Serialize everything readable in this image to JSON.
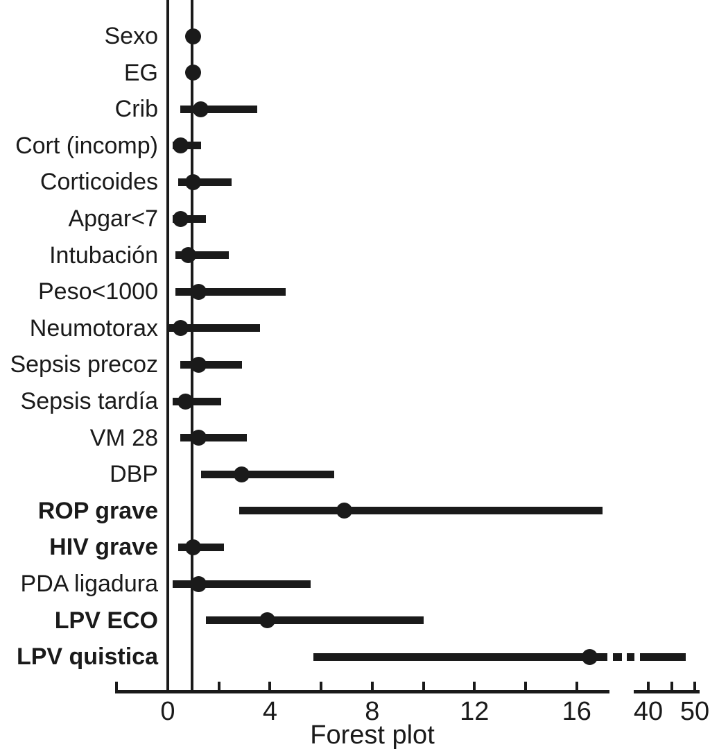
{
  "chart_data": {
    "type": "forest",
    "title": "",
    "xlabel": "Forest plot",
    "x_axis": {
      "scale": "linear",
      "axis_break": true,
      "break_between_values": [
        17.3,
        38.5
      ],
      "left_segment": {
        "range": [
          -2,
          17.3
        ],
        "ticks": [
          -2,
          0,
          2,
          4,
          6,
          8,
          10,
          12,
          14,
          16
        ],
        "tick_labels": [
          {
            "value": 0,
            "label": "0"
          },
          {
            "value": 4,
            "label": "4"
          },
          {
            "value": 8,
            "label": "8"
          },
          {
            "value": 12,
            "label": "12"
          },
          {
            "value": 16,
            "label": "16"
          }
        ]
      },
      "right_segment": {
        "range": [
          38.5,
          51
        ],
        "ticks": [
          40,
          45,
          50
        ],
        "tick_labels": [
          {
            "value": 40,
            "label": "40"
          },
          {
            "value": 50,
            "label": "50"
          }
        ]
      }
    },
    "zero_line_value": 0,
    "reference_line_value": 1,
    "legend": null,
    "grid": false,
    "rows": [
      {
        "label": "Sexo",
        "bold": false,
        "or": 1.0,
        "ci_low": 1.0,
        "ci_high": 1.0
      },
      {
        "label": "EG",
        "bold": false,
        "or": 1.0,
        "ci_low": 1.0,
        "ci_high": 1.0
      },
      {
        "label": "Crib",
        "bold": false,
        "or": 1.3,
        "ci_low": 0.5,
        "ci_high": 3.5
      },
      {
        "label": "Cort (incomp)",
        "bold": false,
        "or": 0.5,
        "ci_low": 0.2,
        "ci_high": 1.3
      },
      {
        "label": "Corticoides",
        "bold": false,
        "or": 1.0,
        "ci_low": 0.4,
        "ci_high": 2.5
      },
      {
        "label": "Apgar<7",
        "bold": false,
        "or": 0.5,
        "ci_low": 0.2,
        "ci_high": 1.5
      },
      {
        "label": "Intubación",
        "bold": false,
        "or": 0.8,
        "ci_low": 0.3,
        "ci_high": 2.4
      },
      {
        "label": "Peso<1000",
        "bold": false,
        "or": 1.2,
        "ci_low": 0.3,
        "ci_high": 4.6
      },
      {
        "label": "Neumotorax",
        "bold": false,
        "or": 0.5,
        "ci_low": 0.05,
        "ci_high": 3.6
      },
      {
        "label": "Sepsis precoz",
        "bold": false,
        "or": 1.2,
        "ci_low": 0.5,
        "ci_high": 2.9
      },
      {
        "label": "Sepsis tardía",
        "bold": false,
        "or": 0.7,
        "ci_low": 0.2,
        "ci_high": 2.1
      },
      {
        "label": "VM 28",
        "bold": false,
        "or": 1.2,
        "ci_low": 0.5,
        "ci_high": 3.1
      },
      {
        "label": "DBP",
        "bold": false,
        "or": 2.9,
        "ci_low": 1.3,
        "ci_high": 6.5
      },
      {
        "label": "ROP grave",
        "bold": true,
        "or": 6.9,
        "ci_low": 2.8,
        "ci_high": 17.0
      },
      {
        "label": "HIV grave",
        "bold": true,
        "or": 1.0,
        "ci_low": 0.4,
        "ci_high": 2.2
      },
      {
        "label": "PDA ligadura",
        "bold": false,
        "or": 1.2,
        "ci_low": 0.2,
        "ci_high": 5.6
      },
      {
        "label": "LPV ECO",
        "bold": true,
        "or": 3.9,
        "ci_low": 1.5,
        "ci_high": 10.0
      },
      {
        "label": "LPV quistica",
        "bold": true,
        "or": 16.5,
        "ci_low": 5.7,
        "ci_high": 48.0
      }
    ]
  },
  "colors": {
    "ink": "#1a1a1a",
    "background": "#ffffff"
  }
}
